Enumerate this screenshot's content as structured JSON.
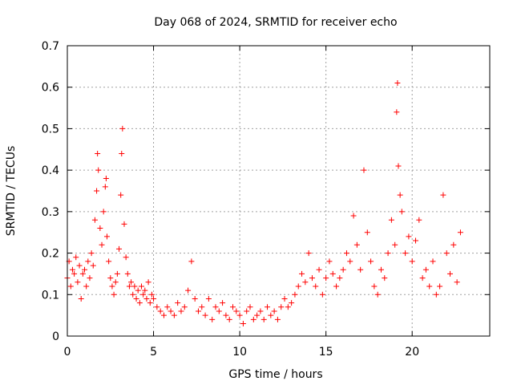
{
  "chart_data": {
    "type": "scatter",
    "title": "Day 068 of 2024, SRMTID for receiver echo",
    "xlabel": "GPS time / hours",
    "ylabel": "SRMTID / TECUs",
    "xlim": [
      0,
      24.5
    ],
    "ylim": [
      0,
      0.7
    ],
    "xticks": [
      0,
      5,
      10,
      15,
      20
    ],
    "xtick_labels": [
      "0",
      "5",
      "10",
      "15",
      "20"
    ],
    "yticks": [
      0,
      0.1,
      0.2,
      0.3,
      0.4,
      0.5,
      0.6,
      0.7
    ],
    "ytick_labels": [
      "0",
      "0.1",
      "0.2",
      "0.3",
      "0.4",
      "0.5",
      "0.6",
      "0.7"
    ],
    "grid": true,
    "marker": "plus",
    "series": [
      {
        "name": "echo",
        "color": "#ff0000",
        "points": [
          [
            0.0,
            0.14
          ],
          [
            0.1,
            0.18
          ],
          [
            0.2,
            0.12
          ],
          [
            0.3,
            0.16
          ],
          [
            0.4,
            0.15
          ],
          [
            0.5,
            0.19
          ],
          [
            0.6,
            0.13
          ],
          [
            0.7,
            0.17
          ],
          [
            0.8,
            0.09
          ],
          [
            0.9,
            0.15
          ],
          [
            1.0,
            0.16
          ],
          [
            1.1,
            0.12
          ],
          [
            1.2,
            0.18
          ],
          [
            1.3,
            0.14
          ],
          [
            1.4,
            0.2
          ],
          [
            1.5,
            0.17
          ],
          [
            1.6,
            0.28
          ],
          [
            1.7,
            0.35
          ],
          [
            1.75,
            0.44
          ],
          [
            1.8,
            0.4
          ],
          [
            1.9,
            0.26
          ],
          [
            2.0,
            0.22
          ],
          [
            2.1,
            0.3
          ],
          [
            2.2,
            0.36
          ],
          [
            2.25,
            0.38
          ],
          [
            2.3,
            0.24
          ],
          [
            2.4,
            0.18
          ],
          [
            2.5,
            0.14
          ],
          [
            2.6,
            0.12
          ],
          [
            2.7,
            0.1
          ],
          [
            2.8,
            0.13
          ],
          [
            2.9,
            0.15
          ],
          [
            3.0,
            0.21
          ],
          [
            3.1,
            0.34
          ],
          [
            3.15,
            0.44
          ],
          [
            3.2,
            0.5
          ],
          [
            3.3,
            0.27
          ],
          [
            3.4,
            0.19
          ],
          [
            3.5,
            0.15
          ],
          [
            3.6,
            0.12
          ],
          [
            3.7,
            0.13
          ],
          [
            3.8,
            0.1
          ],
          [
            3.9,
            0.12
          ],
          [
            4.0,
            0.09
          ],
          [
            4.1,
            0.11
          ],
          [
            4.2,
            0.08
          ],
          [
            4.3,
            0.12
          ],
          [
            4.4,
            0.1
          ],
          [
            4.5,
            0.11
          ],
          [
            4.6,
            0.09
          ],
          [
            4.7,
            0.13
          ],
          [
            4.8,
            0.08
          ],
          [
            4.9,
            0.1
          ],
          [
            5.0,
            0.09
          ],
          [
            5.2,
            0.07
          ],
          [
            5.4,
            0.06
          ],
          [
            5.6,
            0.05
          ],
          [
            5.8,
            0.07
          ],
          [
            6.0,
            0.06
          ],
          [
            6.2,
            0.05
          ],
          [
            6.4,
            0.08
          ],
          [
            6.6,
            0.06
          ],
          [
            6.8,
            0.07
          ],
          [
            7.0,
            0.11
          ],
          [
            7.2,
            0.18
          ],
          [
            7.4,
            0.09
          ],
          [
            7.6,
            0.06
          ],
          [
            7.8,
            0.07
          ],
          [
            8.0,
            0.05
          ],
          [
            8.2,
            0.09
          ],
          [
            8.4,
            0.04
          ],
          [
            8.6,
            0.07
          ],
          [
            8.8,
            0.06
          ],
          [
            9.0,
            0.08
          ],
          [
            9.2,
            0.05
          ],
          [
            9.4,
            0.04
          ],
          [
            9.6,
            0.07
          ],
          [
            9.8,
            0.06
          ],
          [
            10.0,
            0.05
          ],
          [
            10.2,
            0.03
          ],
          [
            10.4,
            0.06
          ],
          [
            10.6,
            0.07
          ],
          [
            10.8,
            0.04
          ],
          [
            11.0,
            0.05
          ],
          [
            11.2,
            0.06
          ],
          [
            11.4,
            0.04
          ],
          [
            11.6,
            0.07
          ],
          [
            11.8,
            0.05
          ],
          [
            12.0,
            0.06
          ],
          [
            12.2,
            0.04
          ],
          [
            12.4,
            0.07
          ],
          [
            12.6,
            0.09
          ],
          [
            12.8,
            0.07
          ],
          [
            13.0,
            0.08
          ],
          [
            13.2,
            0.1
          ],
          [
            13.4,
            0.12
          ],
          [
            13.6,
            0.15
          ],
          [
            13.8,
            0.13
          ],
          [
            14.0,
            0.2
          ],
          [
            14.2,
            0.14
          ],
          [
            14.4,
            0.12
          ],
          [
            14.6,
            0.16
          ],
          [
            14.8,
            0.1
          ],
          [
            15.0,
            0.14
          ],
          [
            15.2,
            0.18
          ],
          [
            15.4,
            0.15
          ],
          [
            15.6,
            0.12
          ],
          [
            15.8,
            0.14
          ],
          [
            16.0,
            0.16
          ],
          [
            16.2,
            0.2
          ],
          [
            16.4,
            0.18
          ],
          [
            16.6,
            0.29
          ],
          [
            16.8,
            0.22
          ],
          [
            17.0,
            0.16
          ],
          [
            17.2,
            0.4
          ],
          [
            17.4,
            0.25
          ],
          [
            17.6,
            0.18
          ],
          [
            17.8,
            0.12
          ],
          [
            18.0,
            0.1
          ],
          [
            18.2,
            0.16
          ],
          [
            18.4,
            0.14
          ],
          [
            18.6,
            0.2
          ],
          [
            18.8,
            0.28
          ],
          [
            19.0,
            0.22
          ],
          [
            19.1,
            0.54
          ],
          [
            19.15,
            0.61
          ],
          [
            19.2,
            0.41
          ],
          [
            19.3,
            0.34
          ],
          [
            19.4,
            0.3
          ],
          [
            19.6,
            0.2
          ],
          [
            19.8,
            0.24
          ],
          [
            20.0,
            0.18
          ],
          [
            20.2,
            0.23
          ],
          [
            20.4,
            0.28
          ],
          [
            20.6,
            0.14
          ],
          [
            20.8,
            0.16
          ],
          [
            21.0,
            0.12
          ],
          [
            21.2,
            0.18
          ],
          [
            21.4,
            0.1
          ],
          [
            21.6,
            0.12
          ],
          [
            21.8,
            0.34
          ],
          [
            22.0,
            0.2
          ],
          [
            22.2,
            0.15
          ],
          [
            22.4,
            0.22
          ],
          [
            22.6,
            0.13
          ],
          [
            22.8,
            0.25
          ]
        ]
      }
    ]
  }
}
